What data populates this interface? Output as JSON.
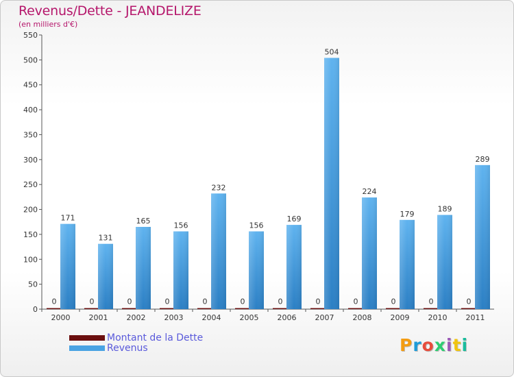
{
  "title": "Revenus/Dette - JEANDELIZE",
  "subtitle": "(en milliers d'€)",
  "colors": {
    "title": "#b5166b",
    "dette": "#6b0f0f",
    "revenus": "#4aa3e3",
    "legend_text": "#5a5adb"
  },
  "chart_data": {
    "type": "bar",
    "categories": [
      "2000",
      "2001",
      "2002",
      "2003",
      "2004",
      "2005",
      "2006",
      "2007",
      "2008",
      "2009",
      "2010",
      "2011"
    ],
    "series": [
      {
        "name": "Montant de la Dette",
        "values": [
          0,
          0,
          0,
          0,
          0,
          0,
          0,
          0,
          0,
          0,
          0,
          0
        ]
      },
      {
        "name": "Revenus",
        "values": [
          171,
          131,
          165,
          156,
          232,
          156,
          169,
          504,
          224,
          179,
          189,
          289
        ]
      }
    ],
    "ylim": [
      0,
      550
    ],
    "yticks": [
      0,
      50,
      100,
      150,
      200,
      250,
      300,
      350,
      400,
      450,
      500,
      550
    ],
    "grid": false
  },
  "legend": {
    "items": [
      "Montant de la Dette",
      "Revenus"
    ]
  },
  "logo": {
    "text": "Proxiti"
  }
}
